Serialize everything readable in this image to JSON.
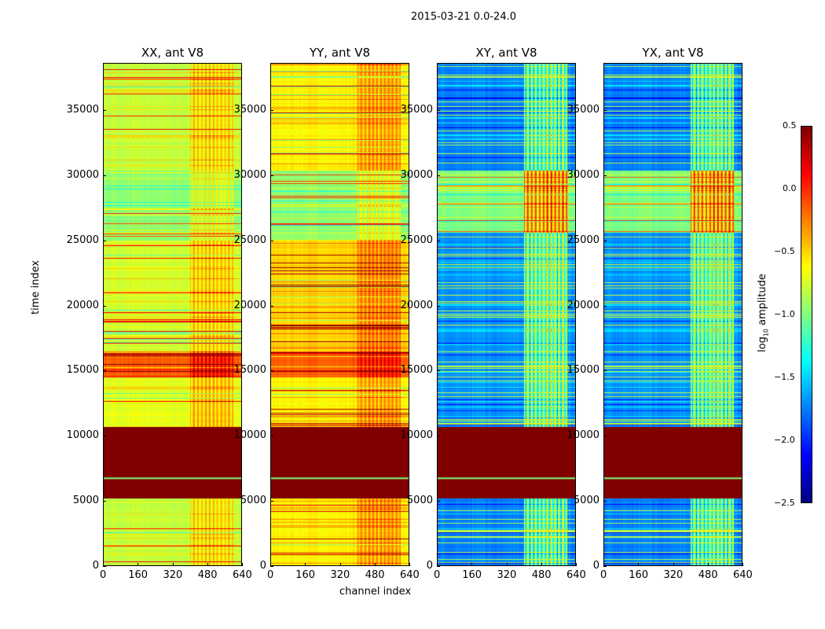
{
  "chart_data": {
    "type": "heatmap",
    "title": "2015-03-21 0.0-24.0",
    "xlabel": "channel index",
    "ylabel": "time index",
    "xlim": [
      0,
      640
    ],
    "ylim": [
      0,
      38620
    ],
    "xticks": [
      "0",
      "160",
      "320",
      "480",
      "640"
    ],
    "yticks": [
      "0",
      "5000",
      "10000",
      "15000",
      "20000",
      "25000",
      "30000",
      "35000"
    ],
    "colormap": "jet",
    "colorbar": {
      "label_main": "log",
      "label_sub": "10",
      "label_rest": " amplitude",
      "range": [
        -2.5,
        0.5
      ],
      "ticks": [
        "0.5",
        "0.0",
        "−0.5",
        "−1.0",
        "−1.5",
        "−2.0",
        "−2.5"
      ]
    },
    "panels": [
      {
        "title": "XX, ant V8",
        "hot_channel_offset": 0.35,
        "segments": [
          [
            0,
            5200,
            -0.8
          ],
          [
            5200,
            10700,
            0.5
          ],
          [
            10700,
            14500,
            -0.7
          ],
          [
            14500,
            16500,
            -0.15
          ],
          [
            16500,
            25000,
            -0.75
          ],
          [
            25000,
            30400,
            -0.95
          ],
          [
            30400,
            38620,
            -0.8
          ]
        ]
      },
      {
        "title": "YY, ant V8",
        "hot_channel_offset": 0.35,
        "segments": [
          [
            0,
            5200,
            -0.6
          ],
          [
            5200,
            10700,
            0.5
          ],
          [
            10700,
            14500,
            -0.6
          ],
          [
            14500,
            16500,
            -0.15
          ],
          [
            16500,
            25000,
            -0.5
          ],
          [
            25000,
            30400,
            -0.95
          ],
          [
            30400,
            38620,
            -0.6
          ]
        ]
      },
      {
        "title": "XY, ant V8",
        "hot_channel_offset": 0.9,
        "segments": [
          [
            0,
            5200,
            -1.75
          ],
          [
            5200,
            10700,
            0.5
          ],
          [
            10700,
            25600,
            -1.7
          ],
          [
            25600,
            30400,
            -1.0
          ],
          [
            30400,
            38620,
            -1.75
          ]
        ]
      },
      {
        "title": "YX, ant V8",
        "hot_channel_offset": 0.9,
        "segments": [
          [
            0,
            5200,
            -1.75
          ],
          [
            5200,
            10700,
            0.5
          ],
          [
            10700,
            25600,
            -1.7
          ],
          [
            25600,
            30400,
            -1.0
          ],
          [
            30400,
            38620,
            -1.75
          ]
        ]
      }
    ]
  }
}
